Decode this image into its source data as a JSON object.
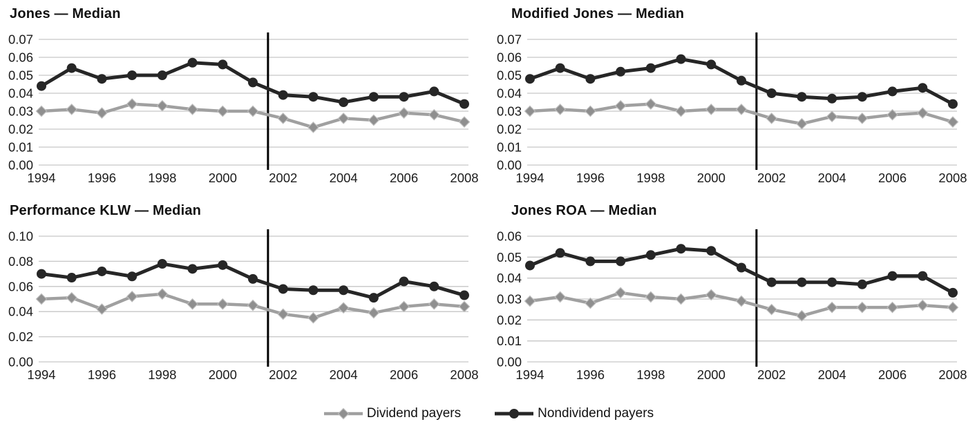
{
  "colors": {
    "grid": "#c6c6c6",
    "text": "#1c1c1c",
    "event_line": "#000000",
    "dividend_line": "#a0a0a0",
    "dividend_marker": "#8f8f8f",
    "dividend_marker_stroke": "#bdbdbd",
    "nondividend": "#262626",
    "background": "#ffffff"
  },
  "legend": {
    "items": [
      {
        "label": "Dividend payers",
        "marker": "diamond",
        "color": "#a0a0a0"
      },
      {
        "label": "Nondividend payers",
        "marker": "circle",
        "color": "#262626"
      }
    ]
  },
  "chart_data": [
    {
      "type": "line",
      "title": "Jones — Median",
      "x": [
        1994,
        1995,
        1996,
        1997,
        1998,
        1999,
        2000,
        2001,
        2002,
        2003,
        2004,
        2005,
        2006,
        2007,
        2008
      ],
      "xticks": [
        1994,
        1996,
        1998,
        2000,
        2002,
        2004,
        2006,
        2008
      ],
      "ylim": [
        0,
        0.07
      ],
      "yticks": [
        "0.00",
        "0.01",
        "0.02",
        "0.03",
        "0.04",
        "0.05",
        "0.06",
        "0.07"
      ],
      "vline_x": 2001.5,
      "grid": true,
      "legend_position": "bottom-shared",
      "series": [
        {
          "name": "Dividend payers",
          "marker": "diamond",
          "values": [
            0.03,
            0.031,
            0.029,
            0.034,
            0.033,
            0.031,
            0.03,
            0.03,
            0.026,
            0.021,
            0.026,
            0.025,
            0.029,
            0.028,
            0.024
          ]
        },
        {
          "name": "Nondividend payers",
          "marker": "circle",
          "values": [
            0.044,
            0.054,
            0.048,
            0.05,
            0.05,
            0.057,
            0.056,
            0.046,
            0.039,
            0.038,
            0.035,
            0.038,
            0.038,
            0.041,
            0.034
          ]
        }
      ]
    },
    {
      "type": "line",
      "title": "Modified Jones — Median",
      "x": [
        1994,
        1995,
        1996,
        1997,
        1998,
        1999,
        2000,
        2001,
        2002,
        2003,
        2004,
        2005,
        2006,
        2007,
        2008
      ],
      "xticks": [
        1994,
        1996,
        1998,
        2000,
        2002,
        2004,
        2006,
        2008
      ],
      "ylim": [
        0,
        0.07
      ],
      "yticks": [
        "0.00",
        "0.01",
        "0.02",
        "0.03",
        "0.04",
        "0.05",
        "0.06",
        "0.07"
      ],
      "vline_x": 2001.5,
      "grid": true,
      "legend_position": "bottom-shared",
      "series": [
        {
          "name": "Dividend payers",
          "marker": "diamond",
          "values": [
            0.03,
            0.031,
            0.03,
            0.033,
            0.034,
            0.03,
            0.031,
            0.031,
            0.026,
            0.023,
            0.027,
            0.026,
            0.028,
            0.029,
            0.024
          ]
        },
        {
          "name": "Nondividend payers",
          "marker": "circle",
          "values": [
            0.048,
            0.054,
            0.048,
            0.052,
            0.054,
            0.059,
            0.056,
            0.047,
            0.04,
            0.038,
            0.037,
            0.038,
            0.041,
            0.043,
            0.034
          ]
        }
      ]
    },
    {
      "type": "line",
      "title": "Performance KLW — Median",
      "x": [
        1994,
        1995,
        1996,
        1997,
        1998,
        1999,
        2000,
        2001,
        2002,
        2003,
        2004,
        2005,
        2006,
        2007,
        2008
      ],
      "xticks": [
        1994,
        1996,
        1998,
        2000,
        2002,
        2004,
        2006,
        2008
      ],
      "ylim": [
        0,
        0.1
      ],
      "yticks": [
        "0.00",
        "0.02",
        "0.04",
        "0.06",
        "0.08",
        "0.10"
      ],
      "vline_x": 2001.5,
      "grid": true,
      "legend_position": "bottom-shared",
      "series": [
        {
          "name": "Dividend payers",
          "marker": "diamond",
          "values": [
            0.05,
            0.051,
            0.042,
            0.052,
            0.054,
            0.046,
            0.046,
            0.045,
            0.038,
            0.035,
            0.043,
            0.039,
            0.044,
            0.046,
            0.044
          ]
        },
        {
          "name": "Nondividend payers",
          "marker": "circle",
          "values": [
            0.07,
            0.067,
            0.072,
            0.068,
            0.078,
            0.074,
            0.077,
            0.066,
            0.058,
            0.057,
            0.057,
            0.051,
            0.064,
            0.06,
            0.053
          ]
        }
      ]
    },
    {
      "type": "line",
      "title": "Jones ROA — Median",
      "x": [
        1994,
        1995,
        1996,
        1997,
        1998,
        1999,
        2000,
        2001,
        2002,
        2003,
        2004,
        2005,
        2006,
        2007,
        2008
      ],
      "xticks": [
        1994,
        1996,
        1998,
        2000,
        2002,
        2004,
        2006,
        2008
      ],
      "ylim": [
        0,
        0.06
      ],
      "yticks": [
        "0.00",
        "0.01",
        "0.02",
        "0.03",
        "0.04",
        "0.05",
        "0.06"
      ],
      "vline_x": 2001.5,
      "grid": true,
      "legend_position": "bottom-shared",
      "series": [
        {
          "name": "Dividend payers",
          "marker": "diamond",
          "values": [
            0.029,
            0.031,
            0.028,
            0.033,
            0.031,
            0.03,
            0.032,
            0.029,
            0.025,
            0.022,
            0.026,
            0.026,
            0.026,
            0.027,
            0.026
          ]
        },
        {
          "name": "Nondividend payers",
          "marker": "circle",
          "values": [
            0.046,
            0.052,
            0.048,
            0.048,
            0.051,
            0.054,
            0.053,
            0.045,
            0.038,
            0.038,
            0.038,
            0.037,
            0.041,
            0.041,
            0.033
          ]
        }
      ]
    }
  ]
}
